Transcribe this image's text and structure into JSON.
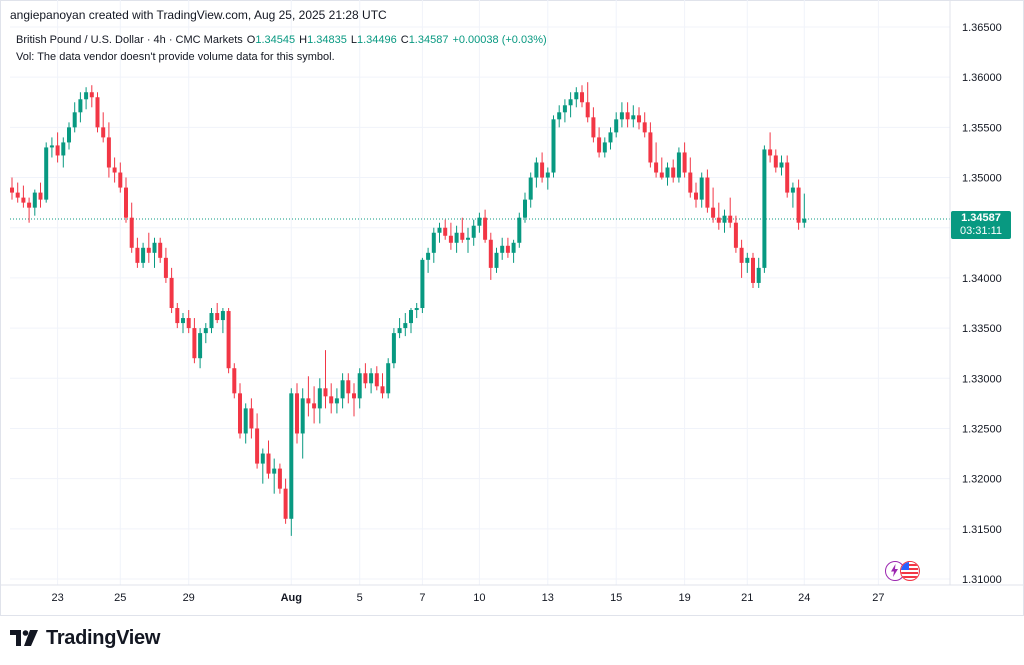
{
  "header": {
    "attribution": "angiepanoyan created with TradingView.com, Aug 25, 2025 21:28 UTC"
  },
  "legend": {
    "symbol": "British Pound / U.S. Dollar · 4h · CMC Markets",
    "open_label": "O",
    "open": "1.34545",
    "high_label": "H",
    "high": "1.34835",
    "low_label": "L",
    "low": "1.34496",
    "close_label": "C",
    "close": "1.34587",
    "change": "+0.00038 (+0.03%)"
  },
  "volume_note": "Vol: The data vendor doesn't provide volume data for this symbol.",
  "price_badge": {
    "price": "1.34587",
    "countdown": "03:31:11"
  },
  "footer": {
    "brand": "TradingView"
  },
  "colors": {
    "up": "#089981",
    "down": "#f23645",
    "grid": "#f0f3fa",
    "axis_text": "#131722",
    "last_price_line": "#089981"
  },
  "chart_data": {
    "type": "candlestick",
    "title": "British Pound / U.S. Dollar · 4h · CMC Markets",
    "ylim": [
      1.3095,
      1.3655
    ],
    "y_ticks": [
      "1.36500",
      "1.36000",
      "1.35500",
      "1.35000",
      "1.34500",
      "1.34000",
      "1.33500",
      "1.33000",
      "1.32500",
      "1.32000",
      "1.31500",
      "1.31000"
    ],
    "y_tick_values": [
      1.365,
      1.36,
      1.355,
      1.35,
      1.345,
      1.34,
      1.335,
      1.33,
      1.325,
      1.32,
      1.315,
      1.31
    ],
    "x_ticks": [
      {
        "label": "23",
        "index": 8
      },
      {
        "label": "25",
        "index": 19
      },
      {
        "label": "29",
        "index": 31
      },
      {
        "label": "Aug",
        "index": 49
      },
      {
        "label": "5",
        "index": 61
      },
      {
        "label": "7",
        "index": 72
      },
      {
        "label": "10",
        "index": 82
      },
      {
        "label": "13",
        "index": 94
      },
      {
        "label": "15",
        "index": 106
      },
      {
        "label": "19",
        "index": 118
      },
      {
        "label": "21",
        "index": 129
      },
      {
        "label": "24",
        "index": 139
      },
      {
        "label": "27",
        "index": 152
      }
    ],
    "last_price": 1.34587,
    "grid": true,
    "candles": [
      [
        1.349,
        1.35,
        1.3478,
        1.3485
      ],
      [
        1.3485,
        1.3495,
        1.3475,
        1.348
      ],
      [
        1.348,
        1.3492,
        1.347,
        1.3475
      ],
      [
        1.3475,
        1.348,
        1.3455,
        1.347
      ],
      [
        1.347,
        1.3488,
        1.3462,
        1.3485
      ],
      [
        1.3485,
        1.3495,
        1.347,
        1.3478
      ],
      [
        1.3478,
        1.3535,
        1.3475,
        1.353
      ],
      [
        1.353,
        1.354,
        1.352,
        1.3532
      ],
      [
        1.3532,
        1.3545,
        1.3515,
        1.3522
      ],
      [
        1.3522,
        1.354,
        1.351,
        1.3535
      ],
      [
        1.3535,
        1.3555,
        1.3528,
        1.355
      ],
      [
        1.355,
        1.3575,
        1.3545,
        1.3565
      ],
      [
        1.3565,
        1.3585,
        1.3555,
        1.3578
      ],
      [
        1.3578,
        1.359,
        1.3568,
        1.3585
      ],
      [
        1.3585,
        1.3592,
        1.357,
        1.358
      ],
      [
        1.358,
        1.3585,
        1.3545,
        1.355
      ],
      [
        1.355,
        1.3565,
        1.3535,
        1.354
      ],
      [
        1.354,
        1.3555,
        1.35,
        1.351
      ],
      [
        1.351,
        1.352,
        1.3495,
        1.3505
      ],
      [
        1.3505,
        1.3515,
        1.3485,
        1.349
      ],
      [
        1.349,
        1.35,
        1.3455,
        1.346
      ],
      [
        1.346,
        1.3475,
        1.3425,
        1.343
      ],
      [
        1.343,
        1.344,
        1.341,
        1.3415
      ],
      [
        1.3415,
        1.3435,
        1.341,
        1.343
      ],
      [
        1.343,
        1.3445,
        1.3415,
        1.3425
      ],
      [
        1.3425,
        1.344,
        1.341,
        1.3435
      ],
      [
        1.3435,
        1.344,
        1.3415,
        1.342
      ],
      [
        1.342,
        1.343,
        1.3395,
        1.34
      ],
      [
        1.34,
        1.341,
        1.3365,
        1.337
      ],
      [
        1.337,
        1.3375,
        1.335,
        1.3355
      ],
      [
        1.3355,
        1.3365,
        1.3345,
        1.336
      ],
      [
        1.336,
        1.3368,
        1.3345,
        1.335
      ],
      [
        1.335,
        1.336,
        1.3315,
        1.332
      ],
      [
        1.332,
        1.335,
        1.331,
        1.3345
      ],
      [
        1.3345,
        1.3355,
        1.3335,
        1.335
      ],
      [
        1.335,
        1.337,
        1.3345,
        1.3365
      ],
      [
        1.3365,
        1.3375,
        1.3355,
        1.3358
      ],
      [
        1.3358,
        1.337,
        1.3345,
        1.3367
      ],
      [
        1.3367,
        1.337,
        1.3305,
        1.331
      ],
      [
        1.331,
        1.3315,
        1.328,
        1.3285
      ],
      [
        1.3285,
        1.3295,
        1.324,
        1.3245
      ],
      [
        1.3245,
        1.3275,
        1.3235,
        1.327
      ],
      [
        1.327,
        1.328,
        1.324,
        1.325
      ],
      [
        1.325,
        1.3265,
        1.321,
        1.3215
      ],
      [
        1.3215,
        1.323,
        1.3195,
        1.3225
      ],
      [
        1.3225,
        1.3238,
        1.32,
        1.3205
      ],
      [
        1.3205,
        1.322,
        1.3185,
        1.321
      ],
      [
        1.321,
        1.3215,
        1.3185,
        1.319
      ],
      [
        1.319,
        1.32,
        1.3155,
        1.316
      ],
      [
        1.316,
        1.329,
        1.3143,
        1.3285
      ],
      [
        1.3285,
        1.3295,
        1.3235,
        1.3245
      ],
      [
        1.3245,
        1.329,
        1.322,
        1.328
      ],
      [
        1.328,
        1.3302,
        1.3262,
        1.3275
      ],
      [
        1.3275,
        1.3292,
        1.3255,
        1.327
      ],
      [
        1.327,
        1.33,
        1.3255,
        1.329
      ],
      [
        1.329,
        1.3328,
        1.327,
        1.3282
      ],
      [
        1.3282,
        1.3295,
        1.3265,
        1.3275
      ],
      [
        1.3275,
        1.329,
        1.3265,
        1.328
      ],
      [
        1.328,
        1.3305,
        1.327,
        1.3298
      ],
      [
        1.3298,
        1.3305,
        1.3275,
        1.3285
      ],
      [
        1.3285,
        1.3295,
        1.3262,
        1.328
      ],
      [
        1.328,
        1.331,
        1.327,
        1.3305
      ],
      [
        1.3305,
        1.3315,
        1.329,
        1.3295
      ],
      [
        1.3295,
        1.331,
        1.3285,
        1.3305
      ],
      [
        1.3305,
        1.3312,
        1.3288,
        1.3292
      ],
      [
        1.3292,
        1.3305,
        1.328,
        1.3285
      ],
      [
        1.3285,
        1.332,
        1.328,
        1.3315
      ],
      [
        1.3315,
        1.335,
        1.331,
        1.3345
      ],
      [
        1.3345,
        1.336,
        1.334,
        1.335
      ],
      [
        1.335,
        1.3365,
        1.3342,
        1.3355
      ],
      [
        1.3355,
        1.337,
        1.3345,
        1.3368
      ],
      [
        1.3368,
        1.3375,
        1.336,
        1.337
      ],
      [
        1.337,
        1.342,
        1.3365,
        1.3418
      ],
      [
        1.3418,
        1.343,
        1.3405,
        1.3425
      ],
      [
        1.3425,
        1.345,
        1.3415,
        1.3445
      ],
      [
        1.3445,
        1.3455,
        1.3435,
        1.345
      ],
      [
        1.345,
        1.3458,
        1.3438,
        1.3442
      ],
      [
        1.3442,
        1.3455,
        1.3428,
        1.3435
      ],
      [
        1.3435,
        1.3452,
        1.3425,
        1.3445
      ],
      [
        1.3445,
        1.346,
        1.3435,
        1.3438
      ],
      [
        1.3438,
        1.345,
        1.3425,
        1.344
      ],
      [
        1.344,
        1.3458,
        1.3432,
        1.3452
      ],
      [
        1.3452,
        1.3465,
        1.3445,
        1.346
      ],
      [
        1.346,
        1.3468,
        1.3435,
        1.3438
      ],
      [
        1.3438,
        1.3445,
        1.3398,
        1.341
      ],
      [
        1.341,
        1.343,
        1.3405,
        1.3425
      ],
      [
        1.3425,
        1.344,
        1.3418,
        1.3432
      ],
      [
        1.3432,
        1.344,
        1.342,
        1.3425
      ],
      [
        1.3425,
        1.3438,
        1.3415,
        1.3435
      ],
      [
        1.3435,
        1.3465,
        1.343,
        1.346
      ],
      [
        1.346,
        1.3485,
        1.3455,
        1.3478
      ],
      [
        1.3478,
        1.3505,
        1.347,
        1.35
      ],
      [
        1.35,
        1.352,
        1.349,
        1.3515
      ],
      [
        1.3515,
        1.3525,
        1.3495,
        1.35
      ],
      [
        1.35,
        1.351,
        1.3488,
        1.3505
      ],
      [
        1.3505,
        1.3562,
        1.35,
        1.3558
      ],
      [
        1.3558,
        1.3572,
        1.355,
        1.3565
      ],
      [
        1.3565,
        1.3578,
        1.3555,
        1.3572
      ],
      [
        1.3572,
        1.3585,
        1.356,
        1.3578
      ],
      [
        1.3578,
        1.359,
        1.357,
        1.3585
      ],
      [
        1.3585,
        1.3592,
        1.357,
        1.3575
      ],
      [
        1.3575,
        1.3595,
        1.3555,
        1.356
      ],
      [
        1.356,
        1.357,
        1.3535,
        1.354
      ],
      [
        1.354,
        1.355,
        1.352,
        1.3525
      ],
      [
        1.3525,
        1.354,
        1.352,
        1.3535
      ],
      [
        1.3535,
        1.355,
        1.3528,
        1.3545
      ],
      [
        1.3545,
        1.3565,
        1.354,
        1.3558
      ],
      [
        1.3558,
        1.3575,
        1.355,
        1.3565
      ],
      [
        1.3565,
        1.3575,
        1.355,
        1.3558
      ],
      [
        1.3558,
        1.3572,
        1.355,
        1.3562
      ],
      [
        1.3562,
        1.357,
        1.3548,
        1.3555
      ],
      [
        1.3555,
        1.3565,
        1.354,
        1.3545
      ],
      [
        1.3545,
        1.3555,
        1.351,
        1.3515
      ],
      [
        1.3515,
        1.3535,
        1.35,
        1.3505
      ],
      [
        1.3505,
        1.352,
        1.3498,
        1.35
      ],
      [
        1.35,
        1.3515,
        1.3492,
        1.351
      ],
      [
        1.351,
        1.3518,
        1.3495,
        1.35
      ],
      [
        1.35,
        1.353,
        1.3495,
        1.3525
      ],
      [
        1.3525,
        1.3535,
        1.35,
        1.3505
      ],
      [
        1.3505,
        1.352,
        1.348,
        1.3485
      ],
      [
        1.3485,
        1.3495,
        1.347,
        1.3478
      ],
      [
        1.3478,
        1.3505,
        1.347,
        1.35
      ],
      [
        1.35,
        1.3508,
        1.3465,
        1.347
      ],
      [
        1.347,
        1.349,
        1.3455,
        1.346
      ],
      [
        1.346,
        1.3475,
        1.3448,
        1.3455
      ],
      [
        1.3455,
        1.3468,
        1.3445,
        1.3462
      ],
      [
        1.3462,
        1.348,
        1.345,
        1.3455
      ],
      [
        1.3455,
        1.3462,
        1.3425,
        1.343
      ],
      [
        1.343,
        1.3438,
        1.34,
        1.3415
      ],
      [
        1.3415,
        1.3425,
        1.3405,
        1.342
      ],
      [
        1.342,
        1.3425,
        1.339,
        1.3395
      ],
      [
        1.3395,
        1.342,
        1.339,
        1.341
      ],
      [
        1.341,
        1.3532,
        1.3405,
        1.3528
      ],
      [
        1.3528,
        1.3545,
        1.3515,
        1.3522
      ],
      [
        1.3522,
        1.3528,
        1.3505,
        1.351
      ],
      [
        1.351,
        1.3522,
        1.3502,
        1.3515
      ],
      [
        1.3515,
        1.3522,
        1.348,
        1.3485
      ],
      [
        1.3485,
        1.3495,
        1.347,
        1.349
      ],
      [
        1.349,
        1.3498,
        1.3448,
        1.3455
      ],
      [
        1.3455,
        1.3484,
        1.345,
        1.3459
      ]
    ]
  }
}
